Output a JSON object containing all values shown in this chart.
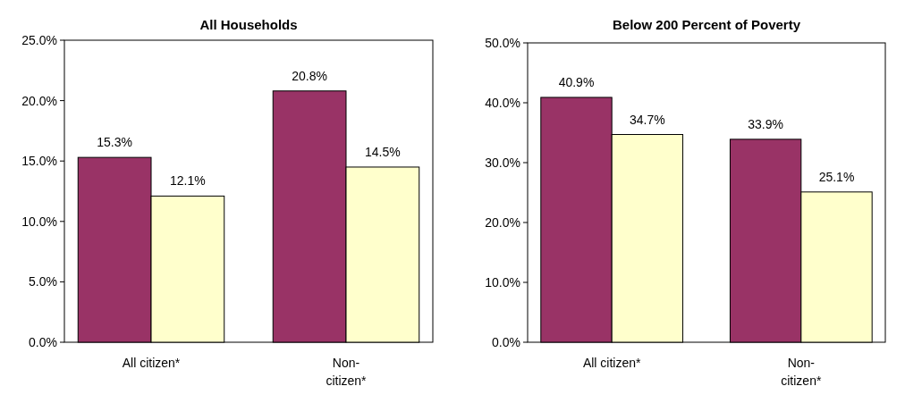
{
  "chart_data": [
    {
      "type": "bar",
      "title": "All Households",
      "categories": [
        "All citizen*",
        "Non-citizen*"
      ],
      "series": [
        {
          "color": "#993366",
          "values": [
            15.3,
            20.8
          ],
          "value_labels": [
            "15.3%",
            "20.8%"
          ]
        },
        {
          "color": "#ffffcc",
          "values": [
            12.1,
            14.5
          ],
          "value_labels": [
            "12.1%",
            "14.5%"
          ]
        }
      ],
      "ylim": [
        0,
        25
      ],
      "yticks": [
        {
          "value": 0,
          "label": "0.0%"
        },
        {
          "value": 5,
          "label": "5.0%"
        },
        {
          "value": 10,
          "label": "10.0%"
        },
        {
          "value": 15,
          "label": "15.0%"
        },
        {
          "value": 20,
          "label": "20.0%"
        },
        {
          "value": 25,
          "label": "25.0%"
        }
      ]
    },
    {
      "type": "bar",
      "title": "Below 200 Percent of Poverty",
      "categories": [
        "All citizen*",
        "Non-citizen*"
      ],
      "series": [
        {
          "color": "#993366",
          "values": [
            40.9,
            33.9
          ],
          "value_labels": [
            "40.9%",
            "33.9%"
          ]
        },
        {
          "color": "#ffffcc",
          "values": [
            34.7,
            25.1
          ],
          "value_labels": [
            "34.7%",
            "25.1%"
          ]
        }
      ],
      "ylim": [
        0,
        50
      ],
      "yticks": [
        {
          "value": 0,
          "label": "0.0%"
        },
        {
          "value": 10,
          "label": "10.0%"
        },
        {
          "value": 20,
          "label": "20.0%"
        },
        {
          "value": 30,
          "label": "30.0%"
        },
        {
          "value": 40,
          "label": "40.0%"
        },
        {
          "value": 50,
          "label": "50.0%"
        }
      ]
    }
  ]
}
